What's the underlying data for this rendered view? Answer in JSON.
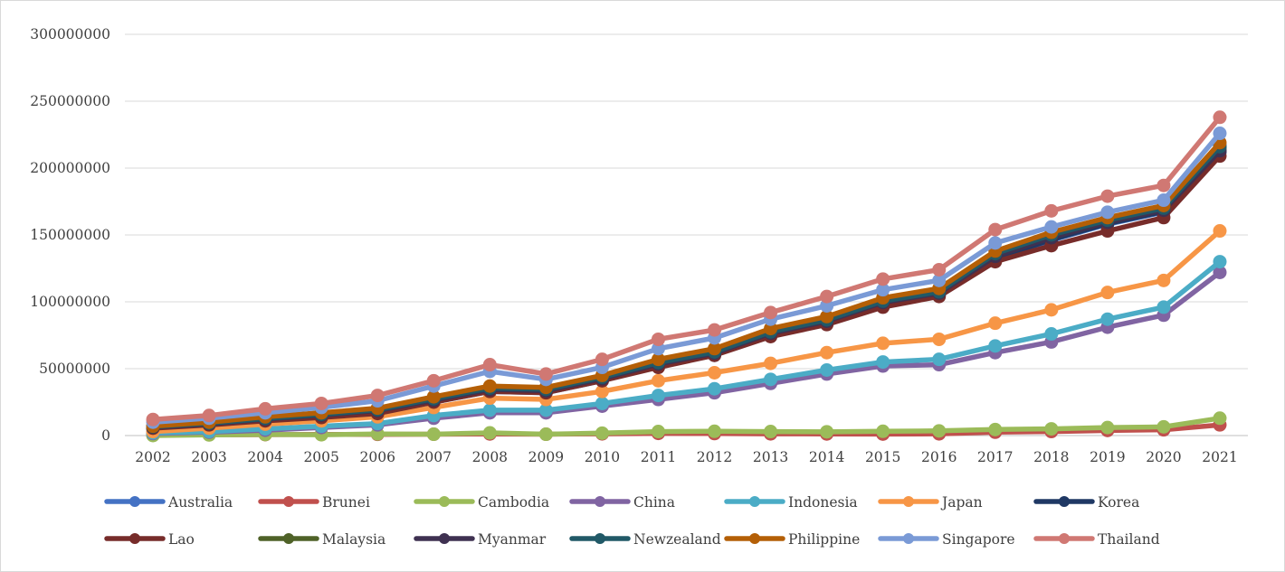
{
  "chart_data": {
    "type": "line",
    "title": "",
    "xlabel": "",
    "ylabel": "",
    "ylim": [
      0,
      300000000
    ],
    "yticks": [
      "0",
      "50000000",
      "100000000",
      "150000000",
      "200000000",
      "250000000",
      "300000000"
    ],
    "grid": true,
    "legend_position": "bottom",
    "categories": [
      "2002",
      "2003",
      "2004",
      "2005",
      "2006",
      "2007",
      "2008",
      "2009",
      "2010",
      "2011",
      "2012",
      "2013",
      "2014",
      "2015",
      "2016",
      "2017",
      "2018",
      "2019",
      "2020",
      "2021"
    ],
    "series": [
      {
        "name": "Australia",
        "color": "#4472c4",
        "values": [
          6000000,
          8500000,
          12000000,
          15000000,
          18000000,
          25000000,
          33000000,
          32000000,
          41000000,
          52000000,
          60000000,
          75000000,
          84000000,
          98000000,
          105000000,
          132000000,
          146000000,
          158000000,
          167000000,
          217000000
        ]
      },
      {
        "name": "Brunei",
        "color": "#c0504d",
        "values": [
          500000,
          600000,
          700000,
          800000,
          900000,
          1000000,
          1200000,
          1000000,
          1300000,
          1600000,
          1500000,
          1300000,
          1200000,
          1100000,
          1300000,
          2500000,
          3000000,
          3800000,
          4300000,
          8000000
        ]
      },
      {
        "name": "Cambodia",
        "color": "#9bbb59",
        "values": [
          0,
          500000,
          800000,
          600000,
          1200000,
          1000000,
          2000000,
          1000000,
          1800000,
          3000000,
          3200000,
          3000000,
          2800000,
          3200000,
          3500000,
          4500000,
          5000000,
          6000000,
          6500000,
          13000000
        ]
      },
      {
        "name": "China",
        "color": "#8064a2",
        "values": [
          1500000,
          2500000,
          4000000,
          6000000,
          8000000,
          13000000,
          17000000,
          17000000,
          22000000,
          27000000,
          32000000,
          39000000,
          46000000,
          52000000,
          53000000,
          62000000,
          70000000,
          81000000,
          90000000,
          122000000
        ]
      },
      {
        "name": "Indonesia",
        "color": "#4bacc6",
        "values": [
          2000000,
          3000000,
          5000000,
          7000000,
          9000000,
          15000000,
          19000000,
          19000000,
          24000000,
          30000000,
          35000000,
          42000000,
          49000000,
          55000000,
          57000000,
          67000000,
          76000000,
          87000000,
          96000000,
          130000000
        ]
      },
      {
        "name": "Japan",
        "color": "#f79646",
        "values": [
          3000000,
          5500000,
          8500000,
          11000000,
          14000000,
          21000000,
          28000000,
          27000000,
          33000000,
          41000000,
          47000000,
          54000000,
          62000000,
          69000000,
          72000000,
          84000000,
          94000000,
          107000000,
          116000000,
          153000000
        ]
      },
      {
        "name": "Korea",
        "color": "#1f3864",
        "values": [
          6000000,
          8500000,
          12000000,
          15000000,
          18000000,
          25500000,
          33500000,
          32500000,
          41500000,
          52500000,
          60500000,
          75500000,
          84500000,
          98500000,
          105500000,
          132500000,
          146500000,
          158500000,
          167500000,
          212000000
        ]
      },
      {
        "name": "Lao",
        "color": "#772c2a",
        "values": [
          5500000,
          8000000,
          11000000,
          13500000,
          16500000,
          25000000,
          33000000,
          32000000,
          41000000,
          51000000,
          60000000,
          74000000,
          83000000,
          96000000,
          104000000,
          130000000,
          142000000,
          153000000,
          163000000,
          209000000
        ]
      },
      {
        "name": "Malaysia",
        "color": "#4f6228",
        "values": [
          6500000,
          9000000,
          12500000,
          15500000,
          19000000,
          27000000,
          35000000,
          34000000,
          43000000,
          54000000,
          62000000,
          77000000,
          86000000,
          100000000,
          107000000,
          135000000,
          149000000,
          160000000,
          169000000,
          215000000
        ]
      },
      {
        "name": "Myanmar",
        "color": "#3f3151",
        "values": [
          6300000,
          8800000,
          12300000,
          15300000,
          18700000,
          26500000,
          34500000,
          33500000,
          42500000,
          53500000,
          61500000,
          76500000,
          85500000,
          99500000,
          106500000,
          134000000,
          148000000,
          159500000,
          168500000,
          213000000
        ]
      },
      {
        "name": "Newzealand",
        "color": "#215967",
        "values": [
          6600000,
          9200000,
          12800000,
          15800000,
          19300000,
          27500000,
          35500000,
          34500000,
          43500000,
          54500000,
          62500000,
          77500000,
          86500000,
          100500000,
          107500000,
          136000000,
          150000000,
          161000000,
          170000000,
          216000000
        ]
      },
      {
        "name": "Philippine",
        "color": "#b45f06",
        "values": [
          7000000,
          10000000,
          14000000,
          17000000,
          20500000,
          29000000,
          37000000,
          36000000,
          45000000,
          57000000,
          65000000,
          80000000,
          89000000,
          103000000,
          110000000,
          138000000,
          152000000,
          163000000,
          172000000,
          219000000
        ]
      },
      {
        "name": "Singapore",
        "color": "#7a9ad6",
        "values": [
          10000000,
          13000000,
          17000000,
          21000000,
          26000000,
          37000000,
          48000000,
          42000000,
          51000000,
          65000000,
          73000000,
          87000000,
          97000000,
          109000000,
          116000000,
          144000000,
          156000000,
          167000000,
          176000000,
          226000000
        ]
      },
      {
        "name": "Thailand",
        "color": "#d07873",
        "values": [
          12000000,
          15000000,
          20000000,
          24000000,
          30000000,
          41000000,
          53000000,
          46000000,
          57000000,
          72000000,
          79000000,
          92000000,
          104000000,
          117000000,
          124000000,
          154000000,
          168000000,
          179000000,
          187000000,
          238000000
        ]
      }
    ]
  }
}
